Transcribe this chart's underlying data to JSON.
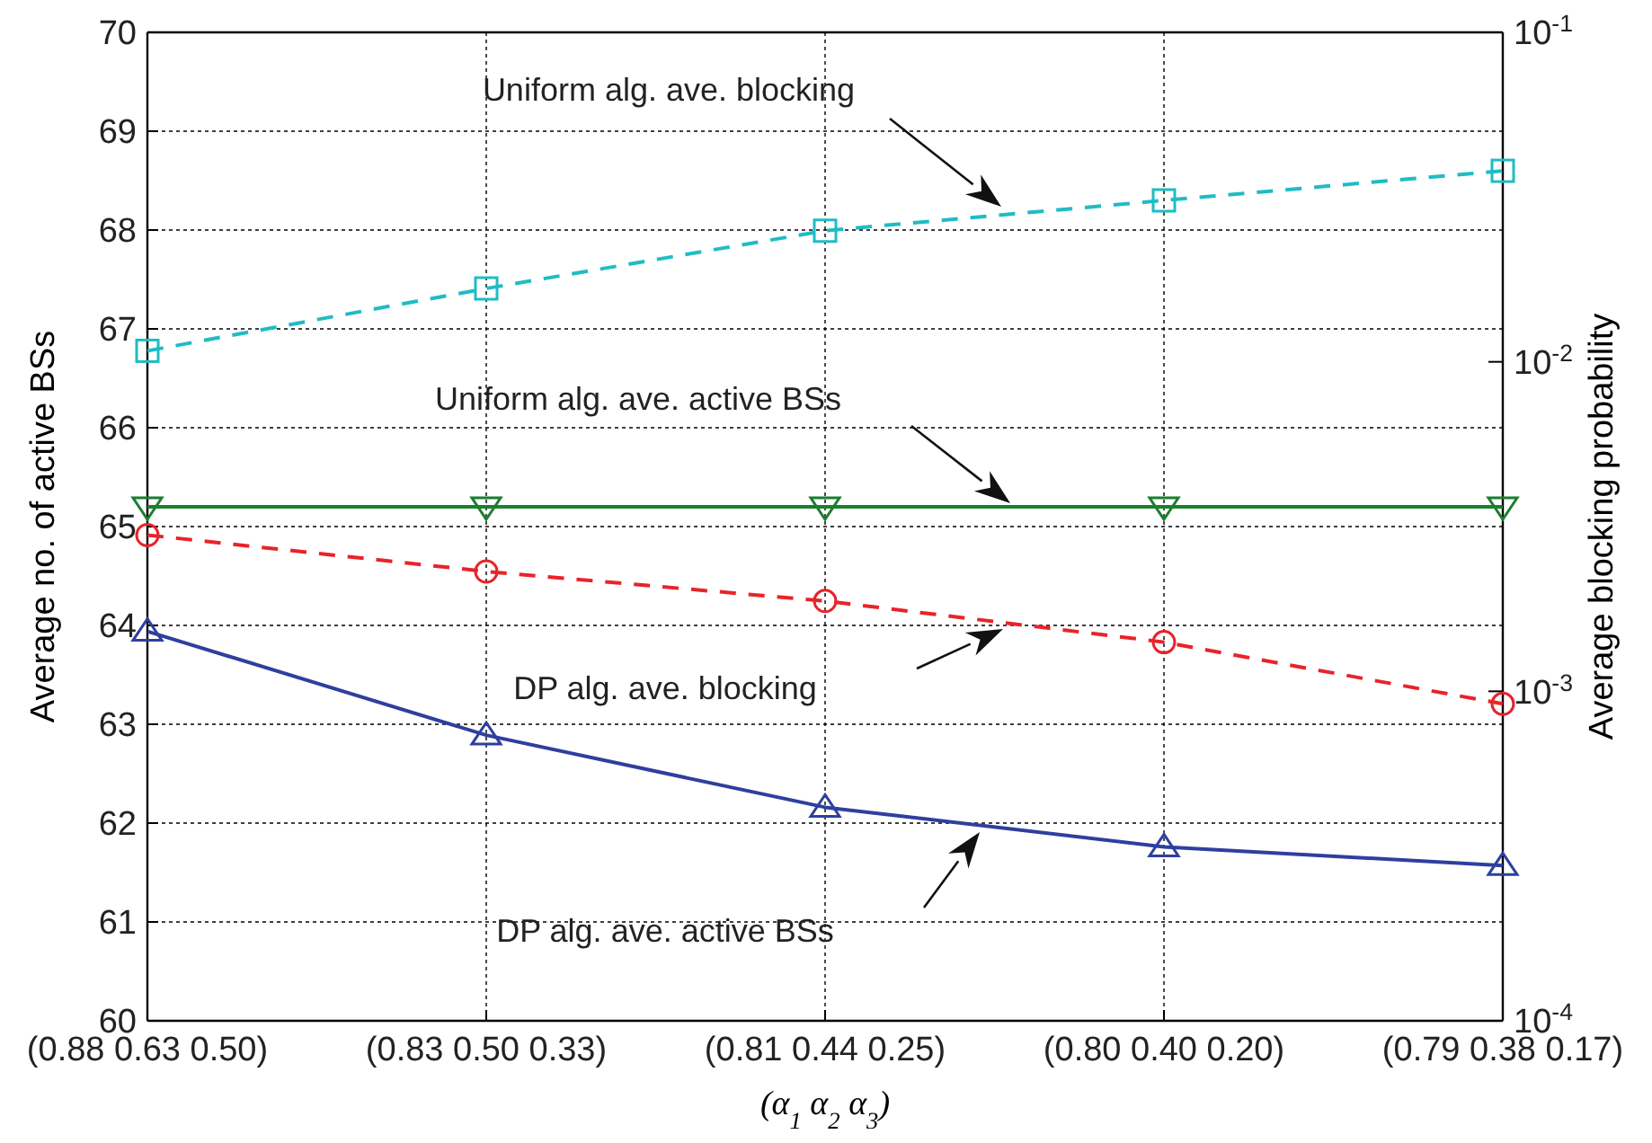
{
  "chart_data": {
    "type": "line",
    "xlabel": "(α$_{1}$ α$_{2}$ α$_{3}$)",
    "ylabel": "Average no. of active BSs",
    "y2label": "Average blocking probability",
    "categories": [
      "(0.88 0.63 0.50)",
      "(0.83 0.50 0.33)",
      "(0.81 0.44 0.25)",
      "(0.80 0.40 0.20)",
      "(0.79 0.38 0.17)"
    ],
    "ylim": [
      60,
      70
    ],
    "yticks": [
      60,
      61,
      62,
      63,
      64,
      65,
      66,
      67,
      68,
      69,
      70
    ],
    "y2lim": [
      0.0001,
      0.1
    ],
    "y2ticks": [
      {
        "value": 0.0001,
        "label": "10$^{-4}$"
      },
      {
        "value": 0.001,
        "label": "10$^{-3}$"
      },
      {
        "value": 0.01,
        "label": "10$^{-2}$"
      },
      {
        "value": 0.1,
        "label": "10$^{-1}$"
      }
    ],
    "log": "y2",
    "grid": true,
    "series": [
      {
        "color": "#1fbcc4",
        "axis": "y2",
        "marker": "square",
        "line_style": "dashed",
        "values": [
          0.0108,
          0.0167,
          0.025,
          0.0309,
          0.038
        ]
      },
      {
        "color": "#1a7f2e",
        "axis": "y",
        "marker": "triangle-down",
        "line_style": "solid",
        "values": [
          65.2,
          65.2,
          65.2,
          65.2,
          65.2
        ]
      },
      {
        "color": "#e8232a",
        "axis": "y2",
        "marker": "circle",
        "line_style": "dashed",
        "values": [
          0.00298,
          0.00231,
          0.00188,
          0.00141,
          0.000916
        ]
      },
      {
        "color": "#2e3f9e",
        "axis": "y",
        "marker": "triangle",
        "line_style": "solid",
        "values": [
          63.94,
          62.89,
          62.16,
          61.76,
          61.57
        ]
      }
    ],
    "annotations": [
      "Uniform alg. ave. blocking",
      "Uniform alg. ave. active BSs",
      "DP alg. ave. blocking",
      "DP alg. ave. active BSs"
    ]
  }
}
